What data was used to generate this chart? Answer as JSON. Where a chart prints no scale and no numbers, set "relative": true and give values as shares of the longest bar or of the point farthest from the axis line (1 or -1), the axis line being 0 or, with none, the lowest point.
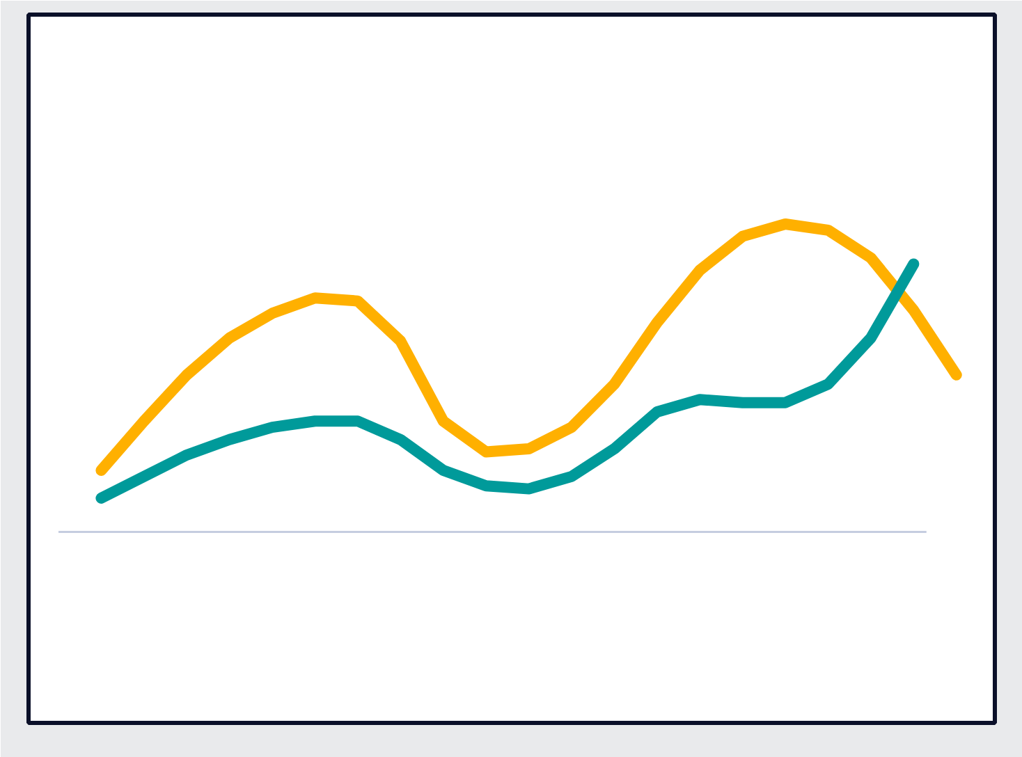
{
  "chart_data": {
    "type": "line",
    "relative": true,
    "grid": false,
    "categories": [
      null,
      null,
      null,
      null,
      null,
      null,
      null,
      null,
      null,
      null,
      null,
      null,
      null,
      null,
      null,
      null,
      null,
      null,
      null,
      null,
      null
    ],
    "series": [
      {
        "color": "#ffb000",
        "values": [
          0.2,
          0.36,
          0.51,
          0.63,
          0.71,
          0.76,
          0.75,
          0.62,
          0.36,
          0.26,
          0.27,
          0.34,
          0.48,
          0.68,
          0.85,
          0.96,
          1.0,
          0.98,
          0.89,
          0.72,
          0.51
        ]
      },
      {
        "color": "#009a9a",
        "values": [
          0.11,
          0.18,
          0.25,
          0.3,
          0.34,
          0.36,
          0.36,
          0.3,
          0.2,
          0.15,
          0.14,
          0.18,
          0.27,
          0.39,
          0.43,
          0.42,
          0.42,
          0.48,
          0.63,
          0.87,
          null
        ]
      }
    ]
  }
}
